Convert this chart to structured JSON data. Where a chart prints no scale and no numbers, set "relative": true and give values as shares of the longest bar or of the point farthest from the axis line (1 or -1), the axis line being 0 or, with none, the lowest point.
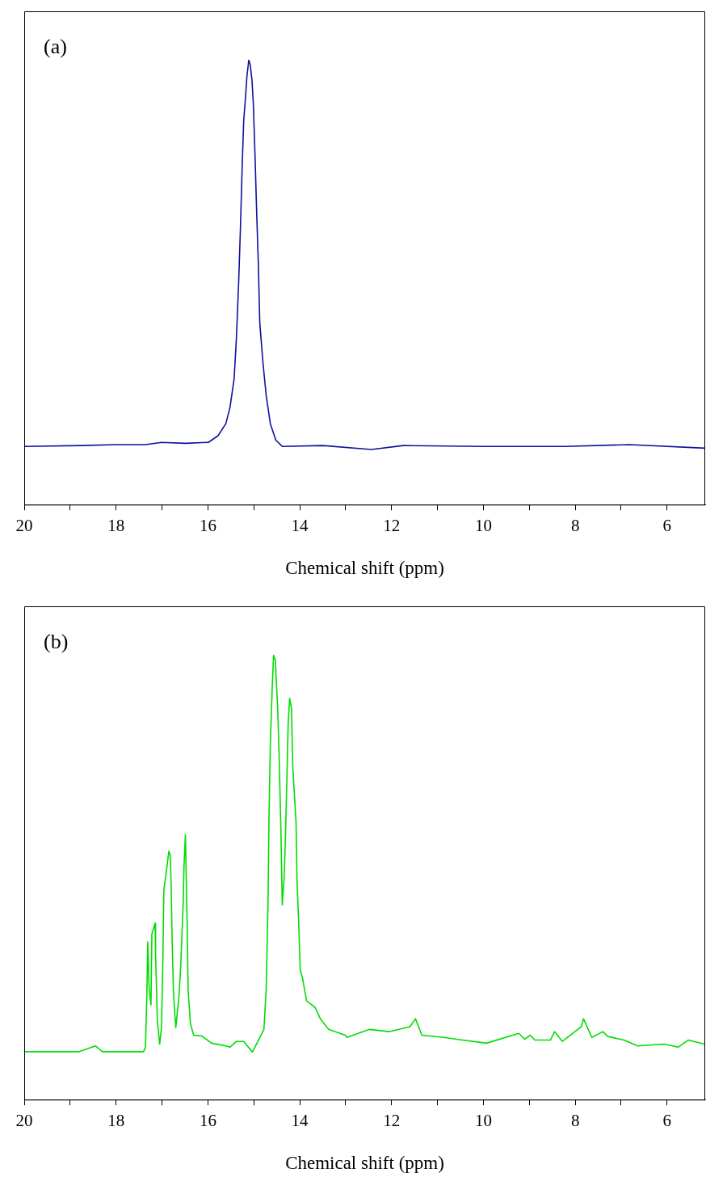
{
  "chart_data": [
    {
      "type": "line",
      "title": "(a)",
      "xlabel": "Chemical shift (ppm)",
      "relative": true,
      "grid": false,
      "legend": false,
      "marker": "none",
      "line_style": "solid",
      "xlim": [
        20,
        5.17
      ],
      "xticks": [
        20,
        {
          "value": 19,
          "label": null
        },
        18,
        {
          "value": 17,
          "label": null
        },
        16,
        {
          "value": 15,
          "label": null
        },
        14,
        {
          "value": 13,
          "label": null
        },
        12,
        {
          "value": 11,
          "label": null
        },
        10,
        {
          "value": 9,
          "label": null
        },
        8,
        {
          "value": 7,
          "label": null
        },
        6
      ],
      "x": [
        20,
        18.77,
        18.0,
        17.36,
        17.01,
        16.49,
        15.99,
        15.78,
        15.61,
        15.52,
        15.43,
        15.38,
        15.33,
        15.29,
        15.25,
        15.22,
        15.18,
        15.15,
        15.11,
        15.08,
        15.04,
        15.01,
        14.97,
        14.94,
        14.9,
        14.87,
        14.8,
        14.73,
        14.64,
        14.52,
        14.38,
        13.5,
        12.44,
        11.74,
        9.98,
        8.22,
        6.82,
        5.17
      ],
      "series": [
        {
          "color": "#1010a0",
          "values": [
            0.131,
            0.133,
            0.135,
            0.135,
            0.14,
            0.138,
            0.14,
            0.155,
            0.182,
            0.218,
            0.282,
            0.373,
            0.5,
            0.627,
            0.773,
            0.864,
            0.918,
            0.964,
            1.0,
            0.991,
            0.955,
            0.9,
            0.773,
            0.664,
            0.536,
            0.409,
            0.318,
            0.245,
            0.182,
            0.145,
            0.131,
            0.133,
            0.124,
            0.133,
            0.131,
            0.131,
            0.135,
            0.127
          ]
        }
      ]
    },
    {
      "type": "line",
      "title": "(b)",
      "xlabel": "Chemical shift (ppm)",
      "relative": true,
      "grid": false,
      "legend": false,
      "marker": "none",
      "line_style": "solid",
      "xlim": [
        20,
        5.17
      ],
      "xticks": [
        20,
        {
          "value": 19,
          "label": null
        },
        18,
        {
          "value": 17,
          "label": null
        },
        16,
        {
          "value": 15,
          "label": null
        },
        14,
        {
          "value": 13,
          "label": null
        },
        12,
        {
          "value": 11,
          "label": null
        },
        10,
        {
          "value": 9,
          "label": null
        },
        8,
        {
          "value": 7,
          "label": null
        },
        6
      ],
      "x": [
        20,
        18.8,
        18.45,
        18.3,
        17.4,
        17.36,
        17.33,
        17.31,
        17.28,
        17.24,
        17.22,
        17.15,
        17.14,
        17.1,
        17.05,
        17.01,
        16.98,
        16.96,
        16.89,
        16.85,
        16.82,
        16.8,
        16.78,
        16.75,
        16.7,
        16.63,
        16.59,
        16.54,
        16.52,
        16.49,
        16.45,
        16.43,
        16.38,
        16.31,
        16.13,
        15.92,
        15.61,
        15.52,
        15.38,
        15.22,
        15.03,
        14.78,
        14.73,
        14.69,
        14.67,
        14.64,
        14.6,
        14.57,
        14.53,
        14.52,
        14.48,
        14.45,
        14.41,
        14.39,
        14.38,
        14.34,
        14.31,
        14.25,
        14.22,
        14.18,
        14.15,
        14.08,
        14.06,
        14.02,
        13.99,
        13.94,
        13.85,
        13.67,
        13.55,
        13.37,
        13.01,
        12.97,
        12.48,
        12.04,
        11.6,
        11.48,
        11.34,
        10.86,
        10.46,
        9.93,
        9.23,
        9.1,
        8.98,
        8.88,
        8.54,
        8.45,
        8.28,
        7.87,
        7.82,
        7.64,
        7.4,
        7.29,
        6.94,
        6.64,
        6.06,
        5.76,
        5.54,
        5.19
      ],
      "series": [
        {
          "color": "#00dd00",
          "values": [
            0.108,
            0.108,
            0.121,
            0.108,
            0.108,
            0.118,
            0.232,
            0.355,
            0.25,
            0.213,
            0.373,
            0.397,
            0.329,
            0.176,
            0.125,
            0.164,
            0.32,
            0.471,
            0.526,
            0.559,
            0.55,
            0.48,
            0.366,
            0.241,
            0.162,
            0.232,
            0.305,
            0.439,
            0.526,
            0.596,
            0.384,
            0.244,
            0.171,
            0.145,
            0.143,
            0.127,
            0.121,
            0.118,
            0.131,
            0.131,
            0.107,
            0.158,
            0.25,
            0.447,
            0.631,
            0.801,
            0.926,
            1.0,
            0.989,
            0.961,
            0.88,
            0.778,
            0.605,
            0.494,
            0.438,
            0.498,
            0.594,
            0.851,
            0.903,
            0.88,
            0.746,
            0.623,
            0.493,
            0.392,
            0.292,
            0.274,
            0.222,
            0.208,
            0.182,
            0.158,
            0.145,
            0.14,
            0.158,
            0.153,
            0.164,
            0.182,
            0.145,
            0.14,
            0.134,
            0.127,
            0.149,
            0.136,
            0.145,
            0.134,
            0.134,
            0.153,
            0.131,
            0.164,
            0.182,
            0.14,
            0.153,
            0.142,
            0.134,
            0.121,
            0.125,
            0.118,
            0.134,
            0.125
          ]
        }
      ]
    }
  ]
}
